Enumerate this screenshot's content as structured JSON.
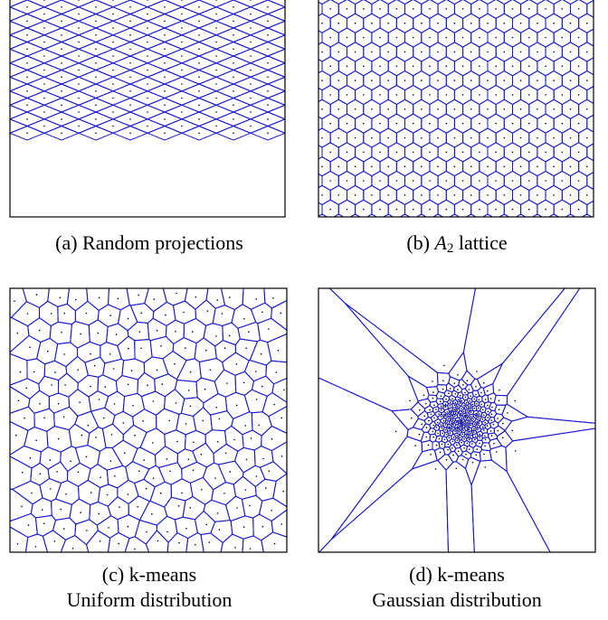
{
  "panels": [
    {
      "id": "a",
      "caption_prefix": "(a) Random projections",
      "caption_italic": "",
      "caption_sub": "",
      "caption_suffix": "",
      "caption_line2": "",
      "pattern": "rhombic-grid"
    },
    {
      "id": "b",
      "caption_prefix": "(b) ",
      "caption_italic": "A",
      "caption_sub": "2",
      "caption_suffix": " lattice",
      "caption_line2": "",
      "pattern": "hexagonal-lattice"
    },
    {
      "id": "c",
      "caption_prefix": "(c) k-means",
      "caption_italic": "",
      "caption_sub": "",
      "caption_suffix": "",
      "caption_line2": "Uniform distribution",
      "pattern": "voronoi-uniform"
    },
    {
      "id": "d",
      "caption_prefix": "(d) k-means",
      "caption_italic": "",
      "caption_sub": "",
      "caption_suffix": "",
      "caption_line2": "Gaussian distribution",
      "pattern": "voronoi-gaussian"
    }
  ],
  "colors": {
    "cell_edges": "#1515d0",
    "centroids": "#000000",
    "frame": "#000000"
  }
}
